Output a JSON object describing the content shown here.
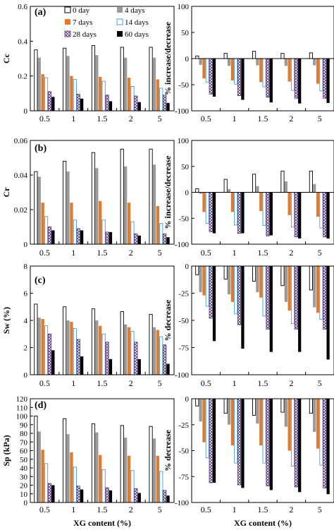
{
  "figure": {
    "xlabel": "XG content (%)",
    "legend_labels": [
      "0 day",
      "4 days",
      "7 days",
      "14 days",
      "28 days",
      "60 days"
    ],
    "series_colors": {
      "day0": "#ffffff",
      "day4": "#9a9a9a",
      "day7": "#e07a2c",
      "day14": "#ffffff",
      "day28": "#ffffff",
      "day60": "#000000"
    },
    "series_strokes": {
      "day14": "#4a9ad8"
    }
  },
  "chart_data": [
    {
      "panel_label": "(a)",
      "type": "bar",
      "categories": [
        "0.5",
        "1",
        "1.5",
        "2",
        "5"
      ],
      "ylabel": "Cc",
      "ylim": [
        0,
        0.6
      ],
      "yticks": [
        "0",
        "0.2",
        "0.4",
        "0.6"
      ],
      "legend_position": "top",
      "series": [
        {
          "name": "0 day",
          "values": [
            0.35,
            0.36,
            0.375,
            0.365,
            0.365
          ]
        },
        {
          "name": "4 days",
          "values": [
            0.305,
            0.315,
            0.32,
            0.305,
            0.305
          ]
        },
        {
          "name": "7 days",
          "values": [
            0.21,
            0.2,
            0.195,
            0.19,
            0.18
          ]
        },
        {
          "name": "14 days",
          "values": [
            0.19,
            0.18,
            0.17,
            0.14,
            0.13
          ]
        },
        {
          "name": "28 days",
          "values": [
            0.11,
            0.095,
            0.09,
            0.085,
            0.09
          ]
        },
        {
          "name": "60 days",
          "values": [
            0.08,
            0.07,
            0.055,
            0.05,
            0.045
          ]
        }
      ]
    },
    {
      "type": "bar",
      "categories": [
        "0.5",
        "1",
        "1.5",
        "2",
        "5"
      ],
      "ylabel": "% increase/decrease",
      "ylim": [
        -100,
        100
      ],
      "yticks": [
        "-100",
        "-50",
        "0",
        "50",
        "100"
      ],
      "series": [
        {
          "values": [
            5,
            10,
            14,
            10,
            11
          ]
        },
        {
          "values": [
            -12,
            -14,
            -13,
            -14,
            -13
          ]
        },
        {
          "values": [
            -38,
            -42,
            -45,
            -44,
            -48
          ]
        },
        {
          "values": [
            -45,
            -49,
            -54,
            -61,
            -62
          ]
        },
        {
          "values": [
            -68,
            -71,
            -74,
            -76,
            -76
          ]
        },
        {
          "values": [
            -73,
            -79,
            -84,
            -86,
            -85
          ]
        }
      ]
    },
    {
      "panel_label": "(b)",
      "type": "bar",
      "categories": [
        "0.5",
        "1",
        "1.5",
        "2",
        "5"
      ],
      "ylabel": "Cr",
      "ylim": [
        0,
        0.06
      ],
      "yticks": [
        "0",
        "0.02",
        "0.04",
        "0.06"
      ],
      "series": [
        {
          "values": [
            0.042,
            0.048,
            0.053,
            0.055,
            0.055
          ]
        },
        {
          "values": [
            0.039,
            0.042,
            0.044,
            0.045,
            0.046
          ]
        },
        {
          "values": [
            0.024,
            0.024,
            0.025,
            0.024,
            0.022
          ]
        },
        {
          "values": [
            0.016,
            0.014,
            0.014,
            0.013,
            0.012
          ]
        },
        {
          "values": [
            0.01,
            0.009,
            0.007,
            0.006,
            0.006
          ]
        },
        {
          "values": [
            0.008,
            0.008,
            0.007,
            0.005,
            0.004
          ]
        }
      ]
    },
    {
      "type": "bar",
      "categories": [
        "0.5",
        "1",
        "1.5",
        "2",
        "5"
      ],
      "ylabel": "% increase/decrease",
      "ylim": [
        -100,
        100
      ],
      "yticks": [
        "-100",
        "-50",
        "0",
        "50",
        "100"
      ],
      "series": [
        {
          "values": [
            7,
            25,
            35,
            41,
            41
          ]
        },
        {
          "values": [
            -3,
            6,
            12,
            21,
            16
          ]
        },
        {
          "values": [
            -38,
            -38,
            -36,
            -44,
            -47
          ]
        },
        {
          "values": [
            -60,
            -63,
            -64,
            -67,
            -69
          ]
        },
        {
          "values": [
            -76,
            -79,
            -84,
            -86,
            -86
          ]
        },
        {
          "values": [
            -79,
            -79,
            -83,
            -89,
            -89
          ]
        }
      ]
    },
    {
      "panel_label": "(c)",
      "type": "bar",
      "categories": [
        "0.5",
        "1",
        "1.5",
        "2",
        "5"
      ],
      "ylabel": "Sw (%)",
      "ylim": [
        0,
        8
      ],
      "yticks": [
        "0",
        "2",
        "4",
        "6",
        "8"
      ],
      "series": [
        {
          "values": [
            5.2,
            5.0,
            4.85,
            4.65,
            4.45
          ]
        },
        {
          "values": [
            4.2,
            4.0,
            4.0,
            3.7,
            3.5
          ]
        },
        {
          "values": [
            4.1,
            3.9,
            3.6,
            3.5,
            3.3
          ]
        },
        {
          "values": [
            3.6,
            3.4,
            3.0,
            3.2,
            2.8
          ]
        },
        {
          "values": [
            3.0,
            2.6,
            2.4,
            2.4,
            2.2
          ]
        },
        {
          "values": [
            1.8,
            1.35,
            1.15,
            1.15,
            0.8
          ]
        }
      ]
    },
    {
      "type": "bar",
      "categories": [
        "0.5",
        "1",
        "1.5",
        "2",
        "5"
      ],
      "ylabel": "% decrease",
      "ylim": [
        -100,
        0
      ],
      "yticks": [
        "-100",
        "-75",
        "-50",
        "-25",
        "0"
      ],
      "series": [
        {
          "values": [
            -8,
            -12,
            -14,
            -18,
            -22
          ]
        },
        {
          "values": [
            -24,
            -26,
            -24,
            -33,
            -38
          ]
        },
        {
          "values": [
            -27,
            -33,
            -29,
            -41,
            -43
          ]
        },
        {
          "values": [
            -37,
            -44,
            -46,
            -53,
            -49
          ]
        },
        {
          "values": [
            -48,
            -54,
            -58,
            -58,
            -58
          ]
        },
        {
          "values": [
            -69,
            -76,
            -79,
            -79,
            -86
          ]
        }
      ]
    },
    {
      "panel_label": "(d)",
      "type": "bar",
      "categories": [
        "0.5",
        "1",
        "1.5",
        "2",
        "5"
      ],
      "ylabel": "Sp (kPa)",
      "ylim": [
        0,
        120
      ],
      "yticks": [
        "0",
        "10",
        "20",
        "30",
        "40",
        "50",
        "60",
        "70",
        "80",
        "90",
        "100",
        "110",
        "120"
      ],
      "series": [
        {
          "values": [
            100,
            97,
            91,
            89,
            88
          ]
        },
        {
          "values": [
            82,
            79,
            81,
            75,
            74
          ]
        },
        {
          "values": [
            61,
            58,
            55,
            54,
            54
          ]
        },
        {
          "values": [
            45,
            41,
            38,
            37,
            36
          ]
        },
        {
          "values": [
            22,
            19,
            17,
            16,
            14
          ]
        },
        {
          "values": [
            20,
            15,
            14,
            11,
            8
          ]
        }
      ]
    },
    {
      "type": "bar",
      "categories": [
        "0.5",
        "1",
        "1.5",
        "2",
        "5"
      ],
      "ylabel": "% decrease",
      "ylim": [
        -100,
        0
      ],
      "yticks": [
        "-100",
        "-75",
        "-50",
        "-25",
        "0"
      ],
      "series": [
        {
          "values": [
            -7,
            -14,
            -16,
            -13,
            -14
          ]
        },
        {
          "values": [
            -22,
            -25,
            -24,
            -27,
            -32
          ]
        },
        {
          "values": [
            -42,
            -45,
            -45,
            -50,
            -48
          ]
        },
        {
          "values": [
            -57,
            -62,
            -62,
            -65,
            -64
          ]
        },
        {
          "values": [
            -81,
            -83,
            -84,
            -85,
            -86
          ]
        },
        {
          "values": [
            -81,
            -86,
            -88,
            -90,
            -92
          ]
        }
      ]
    }
  ]
}
